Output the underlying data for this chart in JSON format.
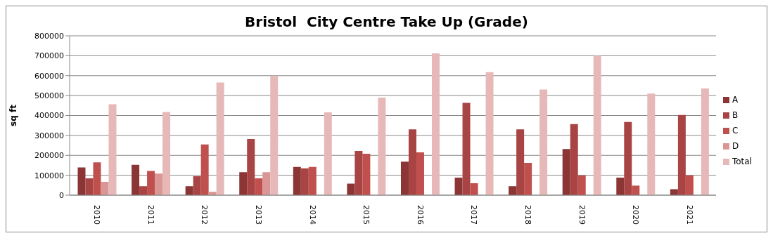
{
  "chart_data": {
    "type": "bar",
    "title": "Bristol  City Centre Take Up (Grade)",
    "ylabel": "sq ft",
    "categories": [
      "2010",
      "2011",
      "2012",
      "2013",
      "2014",
      "2015",
      "2016",
      "2017",
      "2018",
      "2019",
      "2020",
      "2021"
    ],
    "series": [
      {
        "name": "A",
        "color": "#8b3535",
        "values": [
          139000,
          152000,
          45000,
          115000,
          142000,
          58000,
          168000,
          88000,
          45000,
          232000,
          88000,
          30000
        ]
      },
      {
        "name": "B",
        "color": "#a94444",
        "values": [
          85000,
          45000,
          95000,
          282000,
          135000,
          222000,
          330000,
          463000,
          330000,
          357000,
          367000,
          403000
        ]
      },
      {
        "name": "C",
        "color": "#c0504d",
        "values": [
          165000,
          122000,
          255000,
          85000,
          142000,
          208000,
          215000,
          60000,
          162000,
          100000,
          48000,
          100000
        ]
      },
      {
        "name": "D",
        "color": "#d99694",
        "values": [
          67000,
          108000,
          17000,
          115000,
          null,
          null,
          null,
          null,
          null,
          null,
          null,
          null
        ]
      },
      {
        "name": "Total",
        "color": "#e6b9b8",
        "values": [
          456000,
          418000,
          566000,
          598000,
          416000,
          490000,
          712000,
          618000,
          530000,
          700000,
          510000,
          536000
        ]
      }
    ],
    "ylim": [
      0,
      800000
    ],
    "yticks": [
      0,
      100000,
      200000,
      300000,
      400000,
      500000,
      600000,
      700000,
      800000
    ],
    "grid": "y",
    "legend": "right"
  }
}
